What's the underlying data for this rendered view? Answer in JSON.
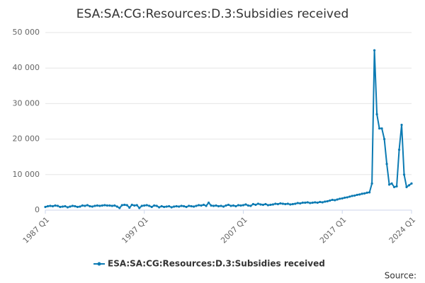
{
  "chart_data": {
    "type": "line",
    "title": "ESA:SA:CG:Resources:D.3:Subsidies received",
    "source": "Source:",
    "categories": [
      "1987 Q1",
      null,
      null,
      null,
      null,
      null,
      null,
      null,
      null,
      null,
      null,
      null,
      null,
      null,
      null,
      null,
      null,
      null,
      null,
      null,
      null,
      null,
      null,
      null,
      null,
      null,
      null,
      null,
      null,
      null,
      null,
      null,
      null,
      null,
      null,
      null,
      null,
      null,
      null,
      null,
      "1997 Q1",
      null,
      null,
      null,
      null,
      null,
      null,
      null,
      null,
      null,
      null,
      null,
      null,
      null,
      null,
      null,
      null,
      null,
      null,
      null,
      null,
      null,
      null,
      null,
      null,
      null,
      null,
      null,
      null,
      null,
      null,
      null,
      null,
      null,
      null,
      null,
      null,
      null,
      null,
      null,
      "2007 Q1",
      null,
      null,
      null,
      null,
      null,
      null,
      null,
      null,
      null,
      null,
      null,
      null,
      null,
      null,
      null,
      null,
      null,
      null,
      null,
      null,
      null,
      null,
      null,
      null,
      null,
      null,
      null,
      null,
      null,
      null,
      null,
      null,
      null,
      null,
      null,
      null,
      null,
      null,
      null,
      "2017 Q1",
      null,
      null,
      null,
      null,
      null,
      null,
      null,
      null,
      null,
      null,
      null,
      null,
      null,
      null,
      null,
      null,
      null,
      null,
      null,
      null,
      null,
      null,
      null,
      null,
      null,
      null,
      null,
      "2024 Q1"
    ],
    "series": [
      {
        "name": "ESA:SA:CG:Resources:D.3:Subsidies received",
        "color": "#0c7bb3",
        "values": [
          900,
          1100,
          1200,
          1100,
          1300,
          1200,
          900,
          1000,
          1100,
          800,
          1000,
          1200,
          1100,
          900,
          1000,
          1300,
          1200,
          1400,
          1100,
          1000,
          1200,
          1300,
          1200,
          1300,
          1400,
          1300,
          1300,
          1200,
          1300,
          1000,
          600,
          1400,
          1500,
          1400,
          700,
          1500,
          1300,
          1400,
          600,
          1200,
          1300,
          1400,
          1200,
          900,
          1300,
          1200,
          800,
          1100,
          900,
          1000,
          1100,
          800,
          1000,
          1100,
          1000,
          1200,
          1100,
          900,
          1200,
          1100,
          1000,
          1200,
          1400,
          1300,
          1500,
          1200,
          2100,
          1300,
          1200,
          1300,
          1100,
          1200,
          1000,
          1300,
          1500,
          1200,
          1300,
          1100,
          1400,
          1300,
          1400,
          1600,
          1300,
          1200,
          1700,
          1500,
          1800,
          1600,
          1500,
          1700,
          1400,
          1500,
          1600,
          1800,
          1700,
          1900,
          1800,
          1700,
          1800,
          1600,
          1700,
          1800,
          2000,
          1900,
          2100,
          2100,
          2200,
          2000,
          2100,
          2200,
          2100,
          2300,
          2200,
          2400,
          2500,
          2700,
          2900,
          2800,
          3000,
          3200,
          3300,
          3500,
          3600,
          3800,
          4000,
          4100,
          4300,
          4400,
          4600,
          4700,
          4900,
          5000,
          7500,
          45000,
          27000,
          23000,
          23000,
          20000,
          13000,
          7200,
          7500,
          6500,
          6700,
          17000,
          24000,
          10000,
          6500,
          7000,
          7500
        ]
      }
    ],
    "ylim": [
      0,
      50000
    ],
    "yticks": [
      0,
      {
        "value": 10000,
        "label": "10 000"
      },
      {
        "value": 20000,
        "label": "20 000"
      },
      {
        "value": 30000,
        "label": "30 000"
      },
      {
        "value": 40000,
        "label": "40 000"
      },
      {
        "value": 50000,
        "label": "50 000"
      }
    ],
    "grid": true
  }
}
